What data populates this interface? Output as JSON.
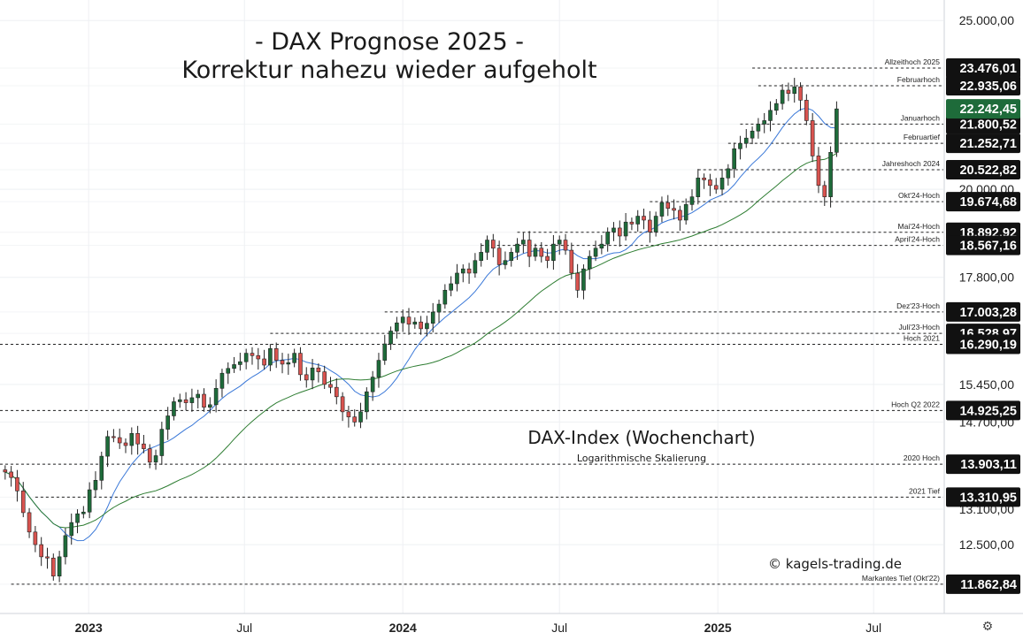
{
  "title_line1": "- DAX Prognose 2025 -",
  "title_line2": "Korrektur nahezu wieder aufgeholt",
  "subtitle": "DAX-Index (Wochenchart)",
  "subtitle_small": "Logarithmische Skalierung",
  "copyright": "© kagels-trading.de",
  "settings_icon": "settings-gear-icon",
  "colors": {
    "up": "#1e6b3a",
    "down": "#d9534f",
    "sma_fast": "#3a78d8",
    "sma_slow": "#2e7d32",
    "current_price_bg": "#1e6b3a",
    "level_bg": "#111111"
  },
  "chart_data": {
    "type": "candlestick",
    "scale": "log",
    "ylim": [
      11600,
      25300
    ],
    "xlim": [
      "2022-09-20",
      "2025-09-20"
    ],
    "x_ticks": [
      {
        "label": "2023",
        "date": "2023-01-01",
        "bold": true
      },
      {
        "label": "Jul",
        "date": "2023-07-01",
        "bold": false
      },
      {
        "label": "2024",
        "date": "2024-01-01",
        "bold": true
      },
      {
        "label": "Jul",
        "date": "2024-07-01",
        "bold": false
      },
      {
        "label": "2025",
        "date": "2025-01-01",
        "bold": true
      },
      {
        "label": "Jul",
        "date": "2025-07-01",
        "bold": false
      }
    ],
    "y_ticks": [
      {
        "value": 25000,
        "label": "25.000,00"
      },
      {
        "value": 20000,
        "label": "20.000,00"
      },
      {
        "value": 17800,
        "label": "17.800,00"
      },
      {
        "value": 15450,
        "label": "15.450,00"
      },
      {
        "value": 14700,
        "label": "14.700,00"
      },
      {
        "value": 13100,
        "label": "13.100,00"
      },
      {
        "value": 12500,
        "label": "12.500,00"
      }
    ],
    "current_price": {
      "value": 22242.45,
      "label": "22.242,45"
    },
    "levels": [
      {
        "name": "Allzeithoch 2025",
        "value": 23476.01,
        "label": "23.476,01",
        "start": "2025-02-10"
      },
      {
        "name": "Februarhoch",
        "value": 22935.06,
        "label": "22.935,06",
        "start": "2025-02-17"
      },
      {
        "name": "Januarhoch",
        "value": 21800.52,
        "label": "21.800,52",
        "start": "2025-01-27"
      },
      {
        "name": "Februartief",
        "value": 21252.71,
        "label": "21.252,71",
        "start": "2025-01-13"
      },
      {
        "name": "Jahreshoch 2024",
        "value": 20522.82,
        "label": "20.522,82",
        "start": "2024-12-09"
      },
      {
        "name": "Okt'24-Hoch",
        "value": 19674.68,
        "label": "19.674,68",
        "start": "2024-10-14"
      },
      {
        "name": "Mai'24-Hoch",
        "value": 18892.92,
        "label": "18.892,92",
        "start": "2024-05-13"
      },
      {
        "name": "April'24-Hoch",
        "value": 18567.16,
        "label": "18.567,16",
        "start": "2024-04-01"
      },
      {
        "name": "Dez'23-Hoch",
        "value": 17003.28,
        "label": "17.003,28",
        "start": "2023-12-11"
      },
      {
        "name": "Juli'23-Hoch",
        "value": 16528.97,
        "label": "16.528,97",
        "start": "2023-07-31"
      },
      {
        "name": "Hoch 2021",
        "value": 16290.19,
        "label": "16.290,19",
        "start": "2022-09-20"
      },
      {
        "name": "Hoch Q2 2022",
        "value": 14925.25,
        "label": "14.925,25",
        "start": "2022-09-20"
      },
      {
        "name": "2020 Hoch",
        "value": 13903.11,
        "label": "13.903,11",
        "start": "2022-09-20"
      },
      {
        "name": "2021 Tief",
        "value": 13310.95,
        "label": "13.310,95",
        "start": "2022-10-31"
      },
      {
        "name": "Markantes Tief (Okt'22)",
        "value": 11862.84,
        "label": "11.862,84",
        "start": "2022-10-03"
      }
    ],
    "weekly_closes": [
      13760,
      13660,
      13420,
      13040,
      12710,
      12500,
      12300,
      12280,
      11990,
      12300,
      12650,
      12870,
      13020,
      13050,
      13440,
      13610,
      14050,
      14420,
      14400,
      14300,
      14250,
      14480,
      14280,
      14190,
      13940,
      14060,
      14560,
      14820,
      15100,
      15140,
      15080,
      15180,
      15250,
      14990,
      15040,
      15370,
      15680,
      15780,
      15860,
      15920,
      16100,
      16050,
      15980,
      15850,
      16200,
      15950,
      15870,
      15900,
      16100,
      15650,
      15540,
      15790,
      15710,
      15450,
      15390,
      15200,
      14900,
      14800,
      14700,
      14900,
      15300,
      15600,
      15950,
      16300,
      16580,
      16760,
      16890,
      16730,
      16780,
      16630,
      16750,
      17000,
      17180,
      17500,
      17650,
      17900,
      18000,
      17900,
      18200,
      18400,
      18700,
      18500,
      18100,
      18200,
      18400,
      18600,
      18700,
      18300,
      18500,
      18300,
      18200,
      18600,
      18700,
      18450,
      17900,
      17500,
      18000,
      18300,
      18500,
      18600,
      18900,
      19000,
      18800,
      19150,
      19100,
      19300,
      19200,
      18900,
      19300,
      19650,
      19500,
      19450,
      19200,
      19600,
      19800,
      20300,
      20250,
      20100,
      20000,
      20300,
      20550,
      21100,
      21250,
      21400,
      21600,
      21800,
      21900,
      22200,
      22400,
      22800,
      22700,
      22900,
      22500,
      21900,
      20900,
      20100,
      19800,
      21000,
      22242
    ]
  }
}
